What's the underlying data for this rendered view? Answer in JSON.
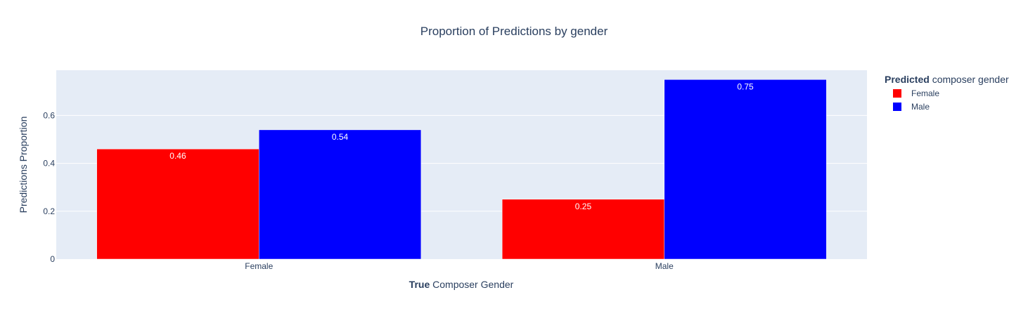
{
  "chart_data": {
    "type": "bar",
    "barmode": "group",
    "title": "Proportion of Predictions by gender",
    "xlabel_bold": "True",
    "xlabel_rest": " Composer Gender",
    "ylabel": "Predictions Proportion",
    "categories": [
      "Female",
      "Male"
    ],
    "yticks": [
      "0",
      "0.2",
      "0.4",
      "0.6"
    ],
    "ytick_values": [
      0,
      0.2,
      0.4,
      0.6
    ],
    "ylim": [
      0,
      0.789
    ],
    "grid": true,
    "legend": {
      "placement": "right",
      "title_bold": "Predicted",
      "title_rest": " composer gender"
    },
    "series": [
      {
        "name": "Female",
        "color": "#ff0000",
        "values": [
          0.46,
          0.25
        ],
        "labels": [
          "0.46",
          "0.25"
        ]
      },
      {
        "name": "Male",
        "color": "#0000ff",
        "values": [
          0.54,
          0.75
        ],
        "labels": [
          "0.54",
          "0.75"
        ]
      }
    ],
    "plot_bg": "#e5ecf6",
    "text_color": "#2a3f5f"
  }
}
